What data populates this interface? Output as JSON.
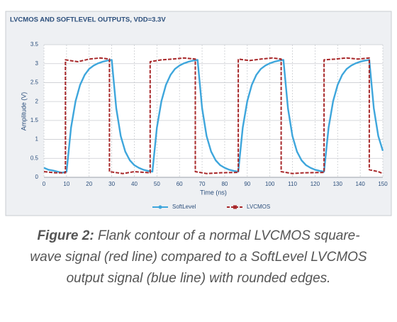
{
  "chart_data": {
    "type": "line",
    "title": "LVCMOS AND SOFTLEVEL OUTPUTS, VDD=3.3V",
    "x_label": "Time (ns)",
    "y_label": "Amplitude (V)",
    "xlim": [
      0,
      150
    ],
    "xticks": [
      0,
      10,
      20,
      30,
      40,
      50,
      60,
      70,
      80,
      90,
      100,
      110,
      120,
      130,
      140,
      150
    ],
    "ylim": [
      0,
      3.5
    ],
    "yticks": [
      0,
      0.5,
      1,
      1.5,
      2,
      2.5,
      3,
      3.5
    ],
    "grid": true,
    "series": [
      {
        "name": "SoftLevel",
        "color": "#3ea6dc",
        "x": [
          0,
          2,
          4,
          6,
          8,
          10,
          12,
          14,
          16,
          18,
          20,
          22,
          24,
          26,
          28,
          30,
          32,
          34,
          36,
          38,
          40,
          42,
          44,
          46,
          48,
          50,
          52,
          54,
          56,
          58,
          60,
          62,
          64,
          66,
          68,
          70,
          72,
          74,
          76,
          78,
          80,
          82,
          84,
          86,
          88,
          90,
          92,
          94,
          96,
          98,
          100,
          102,
          104,
          106,
          108,
          110,
          112,
          114,
          116,
          118,
          120,
          122,
          124,
          126,
          128,
          130,
          132,
          134,
          136,
          138,
          140,
          142,
          144,
          146,
          148,
          150
        ],
        "values": [
          0.25,
          0.2,
          0.18,
          0.15,
          0.12,
          0.15,
          1.31,
          2.01,
          2.44,
          2.7,
          2.86,
          2.95,
          3.01,
          3.05,
          3.08,
          3.1,
          1.82,
          1.09,
          0.68,
          0.45,
          0.32,
          0.25,
          0.2,
          0.17,
          0.15,
          1.31,
          2.01,
          2.44,
          2.7,
          2.86,
          2.95,
          3.01,
          3.05,
          3.08,
          3.1,
          1.82,
          1.09,
          0.68,
          0.45,
          0.32,
          0.25,
          0.2,
          0.17,
          0.15,
          1.31,
          2.01,
          2.44,
          2.7,
          2.86,
          2.95,
          3.01,
          3.05,
          3.08,
          3.1,
          1.82,
          1.09,
          0.68,
          0.45,
          0.32,
          0.25,
          0.2,
          0.17,
          0.15,
          1.31,
          2.01,
          2.44,
          2.7,
          2.86,
          2.95,
          3.01,
          3.05,
          3.08,
          3.1,
          1.82,
          1.09,
          0.7
        ]
      },
      {
        "name": "LVCMOS",
        "color": "#a8282a",
        "x": [
          0,
          5,
          9.5,
          9.5,
          15,
          20,
          25,
          29,
          29,
          35,
          40,
          47,
          47,
          52,
          57,
          62,
          67,
          67,
          72,
          78,
          86,
          86,
          91,
          96,
          101,
          105,
          105,
          110,
          115,
          124,
          124,
          129,
          134,
          139,
          144,
          144,
          148,
          150
        ],
        "values": [
          0.15,
          0.12,
          0.12,
          3.1,
          3.05,
          3.12,
          3.15,
          3.12,
          0.15,
          0.1,
          0.15,
          0.12,
          3.05,
          3.1,
          3.12,
          3.15,
          3.12,
          0.15,
          0.1,
          0.12,
          0.13,
          3.12,
          3.08,
          3.12,
          3.15,
          3.12,
          0.15,
          0.1,
          0.12,
          0.13,
          3.1,
          3.12,
          3.15,
          3.12,
          3.15,
          0.2,
          0.15,
          0.1
        ]
      }
    ]
  },
  "caption": {
    "label": "Figure 2:",
    "text": "Flank contour of a normal LVCMOS square-wave signal (red line) compared to a SoftLevel LVCMOS output signal (blue line) with rounded edges."
  }
}
